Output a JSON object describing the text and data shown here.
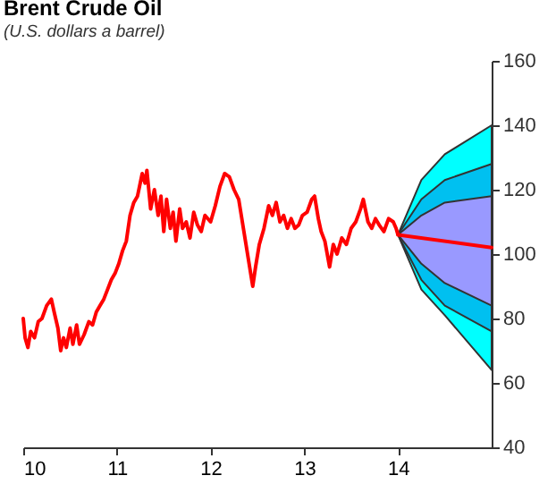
{
  "chart_data": {
    "type": "line",
    "title": "Brent Crude Oil",
    "subtitle": "(U.S. dollars a barrel)",
    "xlim": [
      10,
      15
    ],
    "xticks": [
      10,
      11,
      12,
      13,
      14
    ],
    "ylim": [
      40,
      160
    ],
    "yticks": [
      40,
      60,
      80,
      100,
      120,
      140,
      160
    ],
    "series": [
      {
        "color": "#00ffff",
        "x": [
          14,
          14.25,
          14.5,
          15
        ],
        "values": [
          null,
          null,
          null,
          null
        ],
        "lower": [
          106,
          89,
          81,
          64
        ],
        "upper": [
          106,
          123,
          131,
          140
        ]
      },
      {
        "color": "#00c0f0",
        "x": [
          14,
          14.25,
          14.5,
          15
        ],
        "values": [
          null,
          null,
          null,
          null
        ],
        "lower": [
          106,
          92,
          84,
          76
        ],
        "upper": [
          106,
          117,
          123,
          128
        ]
      },
      {
        "color": "#9999ff",
        "x": [
          14,
          14.25,
          14.5,
          15
        ],
        "values": [
          null,
          null,
          null,
          null
        ],
        "lower": [
          106,
          97,
          91,
          84
        ],
        "upper": [
          106,
          112,
          116,
          118
        ]
      },
      {
        "color": "#ff0000",
        "x": [
          10.0,
          10.02,
          10.05,
          10.08,
          10.12,
          10.16,
          10.2,
          10.25,
          10.3,
          10.33,
          10.37,
          10.4,
          10.43,
          10.46,
          10.5,
          10.53,
          10.57,
          10.6,
          10.65,
          10.7,
          10.74,
          10.78,
          10.82,
          10.86,
          10.9,
          10.94,
          10.98,
          11.02,
          11.06,
          11.1,
          11.14,
          11.18,
          11.22,
          11.27,
          11.3,
          11.32,
          11.36,
          11.4,
          11.44,
          11.47,
          11.5,
          11.53,
          11.57,
          11.6,
          11.63,
          11.67,
          11.7,
          11.74,
          11.78,
          11.82,
          11.86,
          11.9,
          11.94,
          12.0,
          12.05,
          12.1,
          12.15,
          12.2,
          12.25,
          12.3,
          12.35,
          12.4,
          12.45,
          12.48,
          12.52,
          12.57,
          12.62,
          12.66,
          12.7,
          12.74,
          12.78,
          12.82,
          12.86,
          12.9,
          12.94,
          12.98,
          13.03,
          13.08,
          13.11,
          13.15,
          13.18,
          13.22,
          13.27,
          13.31,
          13.35,
          13.4,
          13.45,
          13.5,
          13.55,
          13.6,
          13.63,
          13.68,
          13.72,
          13.76,
          13.8,
          13.85,
          13.9,
          13.95,
          13.98,
          14.0
        ],
        "values": [
          80,
          74,
          71,
          76,
          74,
          79,
          80,
          84,
          86,
          82,
          77,
          70,
          74,
          71,
          77,
          72,
          78,
          72,
          75,
          79,
          78,
          82,
          84,
          86,
          89,
          92,
          94,
          97,
          101,
          104,
          112,
          116,
          118,
          125,
          122,
          126,
          114,
          120,
          112,
          118,
          107,
          117,
          108,
          113,
          104,
          114,
          108,
          110,
          105,
          113,
          109,
          107,
          112,
          110,
          115,
          121,
          125,
          124,
          120,
          117,
          108,
          99,
          90,
          96,
          103,
          108,
          115,
          112,
          116,
          110,
          112,
          108,
          111,
          108,
          109,
          112,
          113,
          117,
          118,
          111,
          107,
          104,
          96,
          103,
          100,
          105,
          103,
          108,
          110,
          114,
          117,
          110,
          108,
          111,
          109,
          107,
          111,
          110,
          108,
          106
        ]
      },
      {
        "color": "#ff0000",
        "x": [
          14,
          15
        ],
        "values": [
          106,
          102
        ]
      }
    ]
  }
}
